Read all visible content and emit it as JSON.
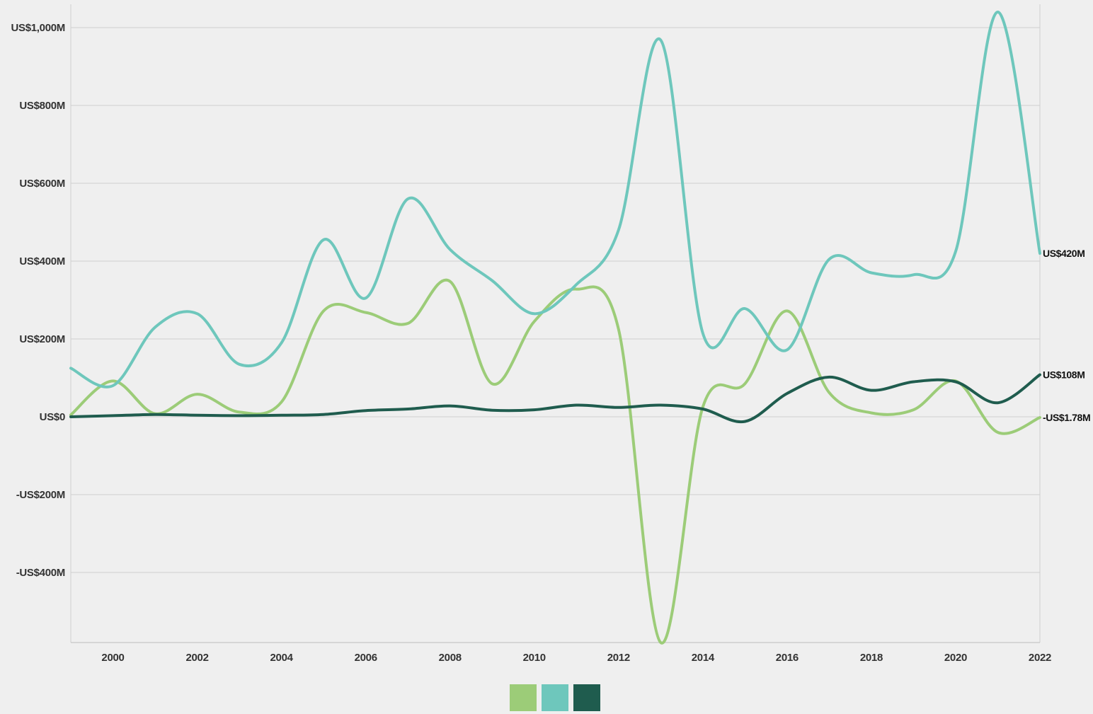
{
  "chart_data": {
    "type": "line",
    "title": "",
    "xlabel": "",
    "ylabel": "",
    "x": [
      1999,
      2000,
      2001,
      2002,
      2003,
      2004,
      2005,
      2006,
      2007,
      2008,
      2009,
      2010,
      2011,
      2012,
      2013,
      2014,
      2015,
      2016,
      2017,
      2018,
      2019,
      2020,
      2021,
      2022
    ],
    "xlim": [
      1999,
      2022
    ],
    "ylim": [
      -580,
      1060
    ],
    "x_ticks": [
      2000,
      2002,
      2004,
      2006,
      2008,
      2010,
      2012,
      2014,
      2016,
      2018,
      2020,
      2022
    ],
    "x_tick_labels": [
      "2000",
      "2002",
      "2004",
      "2006",
      "2008",
      "2010",
      "2012",
      "2014",
      "2016",
      "2018",
      "2020",
      "2022"
    ],
    "y_ticks": [
      -400,
      -200,
      0,
      200,
      400,
      600,
      800,
      1000
    ],
    "y_tick_labels": [
      "-US$400M",
      "-US$200M",
      "US$0",
      "US$200M",
      "US$400M",
      "US$600M",
      "US$800M",
      "US$1,000M"
    ],
    "grid": true,
    "legend": "bottom-center",
    "series": [
      {
        "color": "#9ccc78",
        "values": [
          5,
          92,
          8,
          58,
          12,
          38,
          272,
          268,
          240,
          348,
          85,
          245,
          328,
          225,
          -580,
          25,
          85,
          272,
          62,
          10,
          18,
          92,
          -40,
          -1.78
        ],
        "end_label": "-US$1.78M"
      },
      {
        "color": "#6ec7bc",
        "values": [
          125,
          80,
          230,
          265,
          135,
          190,
          455,
          305,
          560,
          430,
          350,
          265,
          340,
          480,
          968,
          215,
          278,
          172,
          405,
          370,
          365,
          425,
          1040,
          420
        ],
        "end_label": "US$420M"
      },
      {
        "color": "#1f5c4e",
        "values": [
          0,
          3,
          6,
          4,
          3,
          4,
          6,
          16,
          20,
          28,
          17,
          18,
          30,
          24,
          30,
          20,
          -12,
          60,
          102,
          68,
          90,
          90,
          36,
          108
        ],
        "end_label": "US$108M"
      }
    ]
  }
}
